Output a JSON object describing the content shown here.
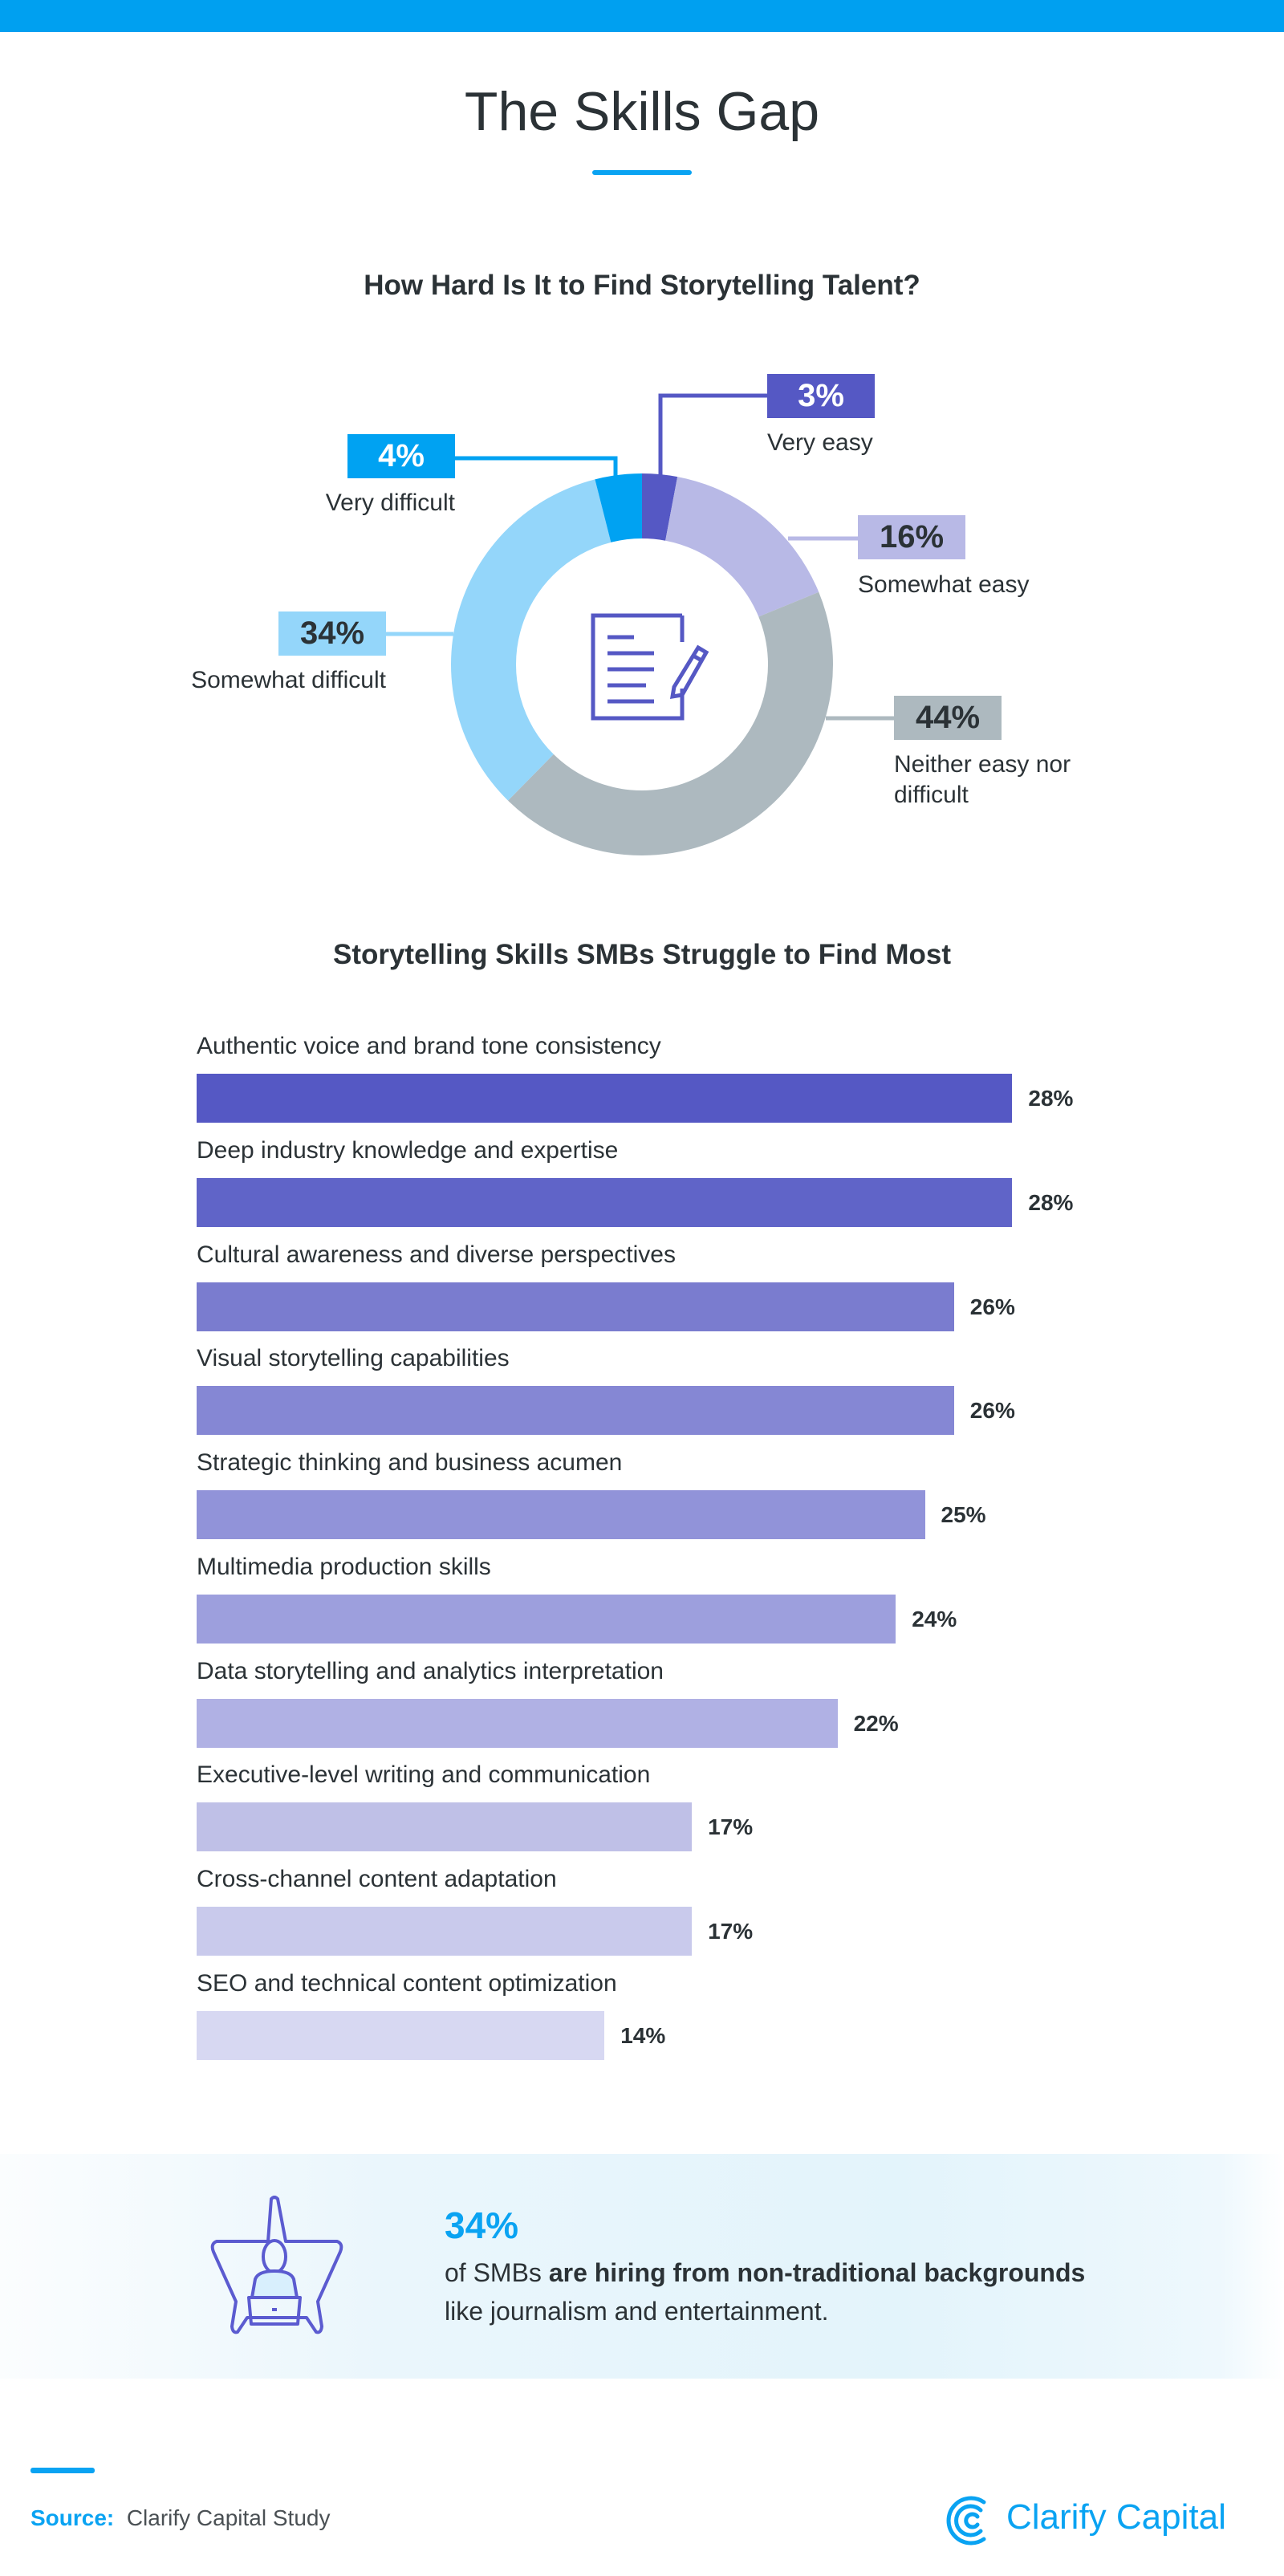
{
  "header": {
    "title": "The Skills Gap",
    "accent_color": "#00a0f0"
  },
  "chart_data": [
    {
      "type": "pie",
      "variant": "donut",
      "title": "How Hard Is It to Find Storytelling Talent?",
      "center_icon": "document-pencil-icon",
      "slices": [
        {
          "label": "Very easy",
          "value": 3,
          "value_label": "3%",
          "color": "#5558c4",
          "text_color": "#ffffff"
        },
        {
          "label": "Somewhat easy",
          "value": 16,
          "value_label": "16%",
          "color": "#b8b9e6",
          "text_color": "#2b3236"
        },
        {
          "label": "Neither easy nor difficult",
          "label_lines": [
            "Neither easy nor",
            "difficult"
          ],
          "value": 44,
          "value_label": "44%",
          "color": "#adb9bf",
          "text_color": "#2b3236"
        },
        {
          "label": "Somewhat difficult",
          "value": 34,
          "value_label": "34%",
          "color": "#94d6fa",
          "text_color": "#2b3236"
        },
        {
          "label": "Very difficult",
          "value": 4,
          "value_label": "4%",
          "color": "#00a2f2",
          "text_color": "#ffffff"
        }
      ]
    },
    {
      "type": "bar",
      "orientation": "horizontal",
      "title": "Storytelling Skills SMBs Struggle to Find Most",
      "unit": "%",
      "categories": [
        "Authentic voice and brand tone consistency",
        "Deep industry knowledge and expertise",
        "Cultural awareness and diverse perspectives",
        "Visual storytelling capabilities",
        "Strategic thinking and business acumen",
        "Multimedia production skills",
        "Data storytelling and analytics interpretation",
        "Executive-level writing and communication",
        "Cross-channel content adaptation",
        "SEO and technical content optimization"
      ],
      "values": [
        28,
        28,
        26,
        26,
        25,
        24,
        22,
        17,
        17,
        14
      ],
      "value_labels": [
        "28%",
        "28%",
        "26%",
        "26%",
        "25%",
        "24%",
        "22%",
        "17%",
        "17%",
        "14%"
      ],
      "colors": [
        "#5558c4",
        "#6064c8",
        "#7a7ccf",
        "#8587d4",
        "#9193d9",
        "#9d9fdd",
        "#b0b1e4",
        "#bfc0e7",
        "#c9caec",
        "#d7d8f2"
      ]
    }
  ],
  "callout": {
    "icon": "star-person-laptop-icon",
    "stat": "34%",
    "text_plain": "of SMBs ",
    "text_bold": "are hiring from non-traditional backgrounds",
    "text_line2": "like journalism and entertainment."
  },
  "footer": {
    "source_label": "Source:",
    "source_value": "Clarify Capital Study",
    "logo_text": "Clarify Capital",
    "logo_icon": "clarify-capital-logo-icon"
  }
}
